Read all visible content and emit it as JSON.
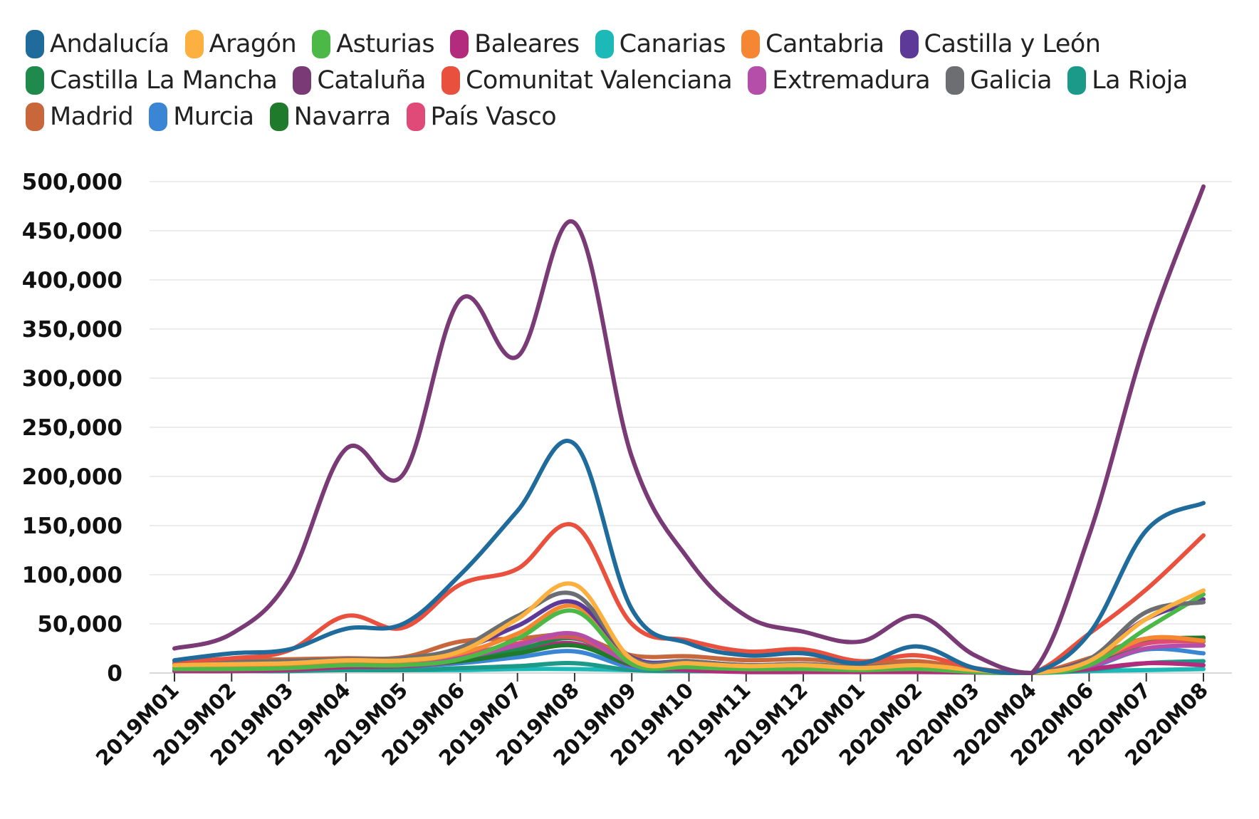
{
  "chart_data": {
    "type": "line",
    "title": "",
    "xlabel": "",
    "ylabel": "",
    "ylim": [
      0,
      500000
    ],
    "yticks": [
      0,
      50000,
      100000,
      150000,
      200000,
      250000,
      300000,
      350000,
      400000,
      450000,
      500000
    ],
    "ytick_labels": [
      "0",
      "50,000",
      "100,000",
      "150,000",
      "200,000",
      "250,000",
      "300,000",
      "350,000",
      "400,000",
      "450,000",
      "500,000"
    ],
    "grid": true,
    "legend_position": "top",
    "categories": [
      "2019M01",
      "2019M02",
      "2019M03",
      "2019M04",
      "2019M05",
      "2019M06",
      "2019M07",
      "2019M08",
      "2019M09",
      "2019M10",
      "2019M11",
      "2019M12",
      "2020M01",
      "2020M02",
      "2020M03",
      "2020M04",
      "2020M06",
      "2020M07",
      "2020M08"
    ],
    "series": [
      {
        "name": "Andalucía",
        "color": "#1f6b9c",
        "values": [
          13000,
          20000,
          24000,
          45000,
          50000,
          100000,
          165000,
          233000,
          65000,
          30000,
          18000,
          20000,
          10000,
          27000,
          5000,
          0,
          40000,
          145000,
          173000
        ]
      },
      {
        "name": "Aragón",
        "color": "#fbb040",
        "values": [
          8000,
          9000,
          10000,
          13000,
          13000,
          22000,
          55000,
          90000,
          14000,
          10000,
          7000,
          8000,
          5000,
          8000,
          3000,
          0,
          12000,
          55000,
          84000
        ]
      },
      {
        "name": "Asturias",
        "color": "#4cb848",
        "values": [
          4000,
          4000,
          5000,
          8000,
          8000,
          14000,
          35000,
          63000,
          9000,
          6000,
          4000,
          4000,
          3000,
          4000,
          1000,
          0,
          8000,
          45000,
          80000
        ]
      },
      {
        "name": "Baleares",
        "color": "#b22b7c",
        "values": [
          2000,
          2000,
          3000,
          6000,
          7000,
          12000,
          22000,
          30000,
          8000,
          3000,
          1000,
          1000,
          1000,
          1000,
          500,
          0,
          4000,
          10000,
          8000
        ]
      },
      {
        "name": "Canarias",
        "color": "#1db8b8",
        "values": [
          3000,
          3000,
          3000,
          3000,
          3000,
          3000,
          4000,
          4000,
          3000,
          3000,
          3000,
          3000,
          3000,
          3000,
          1000,
          0,
          2000,
          3000,
          4000
        ]
      },
      {
        "name": "Cantabria",
        "color": "#f58632",
        "values": [
          6000,
          7000,
          8000,
          12000,
          12000,
          20000,
          40000,
          68000,
          14000,
          10000,
          6000,
          7000,
          4000,
          6000,
          2000,
          0,
          10000,
          35000,
          33000
        ]
      },
      {
        "name": "Castilla y León",
        "color": "#5e3a98",
        "values": [
          9000,
          10000,
          11000,
          14000,
          14000,
          24000,
          48000,
          72000,
          16000,
          12000,
          8000,
          9000,
          6000,
          8000,
          3000,
          0,
          14000,
          55000,
          75000
        ]
      },
      {
        "name": "Castilla  La Mancha",
        "color": "#1f8a4c",
        "values": [
          4000,
          5000,
          6000,
          8000,
          8000,
          14000,
          24000,
          35000,
          10000,
          7000,
          5000,
          5000,
          4000,
          5000,
          2000,
          0,
          8000,
          30000,
          35000
        ]
      },
      {
        "name": "Cataluña",
        "color": "#7a3a75",
        "values": [
          25000,
          40000,
          95000,
          228000,
          202000,
          380000,
          322000,
          458000,
          220000,
          115000,
          58000,
          42000,
          32000,
          58000,
          18000,
          0,
          140000,
          340000,
          495000
        ]
      },
      {
        "name": "Comunitat Valenciana",
        "color": "#e9503e",
        "values": [
          12000,
          15000,
          23000,
          58000,
          46000,
          90000,
          106000,
          150000,
          50000,
          33000,
          22000,
          24000,
          12000,
          18000,
          5000,
          0,
          40000,
          85000,
          140000
        ]
      },
      {
        "name": "Extremadura",
        "color": "#b44ea8",
        "values": [
          5000,
          5000,
          6000,
          9000,
          9000,
          15000,
          28000,
          40000,
          10000,
          7000,
          5000,
          5000,
          4000,
          5000,
          2000,
          0,
          7000,
          25000,
          28000
        ]
      },
      {
        "name": "Galicia",
        "color": "#6d6e71",
        "values": [
          10000,
          11000,
          12000,
          14000,
          15000,
          26000,
          58000,
          80000,
          15000,
          12000,
          8000,
          9000,
          6000,
          8000,
          3000,
          0,
          14000,
          62000,
          72000
        ]
      },
      {
        "name": "La Rioja",
        "color": "#1b9a8a",
        "values": [
          2000,
          2000,
          2000,
          3000,
          3000,
          5000,
          7000,
          10000,
          3000,
          2000,
          2000,
          2000,
          1000,
          2000,
          500,
          0,
          3000,
          10000,
          12000
        ]
      },
      {
        "name": "Madrid",
        "color": "#c8663c",
        "values": [
          12000,
          13000,
          14000,
          15000,
          16000,
          32000,
          35000,
          38000,
          18000,
          17000,
          13000,
          14000,
          10000,
          12000,
          4000,
          0,
          15000,
          35000,
          32000
        ]
      },
      {
        "name": "Murcia",
        "color": "#3a85d4",
        "values": [
          4000,
          4000,
          5000,
          7000,
          7000,
          10000,
          16000,
          22000,
          6000,
          5000,
          4000,
          4000,
          3000,
          4000,
          1000,
          0,
          6000,
          24000,
          20000
        ]
      },
      {
        "name": "Navarra",
        "color": "#1f7a2c",
        "values": [
          5000,
          5000,
          6000,
          9000,
          9000,
          12000,
          20000,
          28000,
          9000,
          7000,
          5000,
          5000,
          4000,
          5000,
          2000,
          0,
          8000,
          32000,
          36000
        ]
      },
      {
        "name": "País Vasco",
        "color": "#e04a78",
        "values": [
          8000,
          9000,
          10000,
          14000,
          14000,
          18000,
          30000,
          36000,
          12000,
          10000,
          8000,
          8000,
          6000,
          8000,
          3000,
          0,
          12000,
          30000,
          32000
        ]
      }
    ]
  },
  "legend": {
    "rows": [
      [
        {
          "label": "Andalucía",
          "color": "#1f6b9c"
        },
        {
          "label": "Aragón",
          "color": "#fbb040"
        },
        {
          "label": "Asturias",
          "color": "#4cb848"
        },
        {
          "label": "Baleares",
          "color": "#b22b7c"
        },
        {
          "label": "Canarias",
          "color": "#1db8b8"
        },
        {
          "label": "Cantabria",
          "color": "#f58632"
        },
        {
          "label": "Castilla y León",
          "color": "#5e3a98"
        }
      ],
      [
        {
          "label": "Castilla  La Mancha",
          "color": "#1f8a4c"
        },
        {
          "label": "Cataluña",
          "color": "#7a3a75"
        },
        {
          "label": "Comunitat Valenciana",
          "color": "#e9503e"
        },
        {
          "label": "Extremadura",
          "color": "#b44ea8"
        },
        {
          "label": "Galicia",
          "color": "#6d6e71"
        },
        {
          "label": "La Rioja",
          "color": "#1b9a8a"
        }
      ],
      [
        {
          "label": "Madrid",
          "color": "#c8663c"
        },
        {
          "label": "Murcia",
          "color": "#3a85d4"
        },
        {
          "label": "Navarra",
          "color": "#1f7a2c"
        },
        {
          "label": "País Vasco",
          "color": "#e04a78"
        }
      ]
    ]
  }
}
